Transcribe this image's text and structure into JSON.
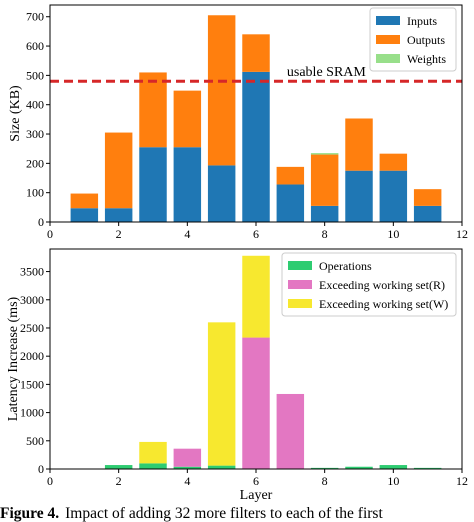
{
  "chart_data": [
    {
      "type": "bar",
      "stacked": true,
      "x": [
        1,
        2,
        3,
        4,
        5,
        6,
        7,
        8,
        9,
        10,
        11
      ],
      "series": [
        {
          "name": "Inputs",
          "color": "#1f77b4",
          "values": [
            47,
            47,
            255,
            255,
            193,
            512,
            128,
            55,
            175,
            175,
            55
          ]
        },
        {
          "name": "Outputs",
          "color": "#ff7f0e",
          "values": [
            50,
            258,
            255,
            193,
            512,
            128,
            60,
            175,
            178,
            58,
            57
          ]
        },
        {
          "name": "Weights",
          "color": "#98df8a",
          "values": [
            0,
            0,
            0,
            0,
            0,
            0,
            0,
            5,
            0,
            0,
            0
          ]
        }
      ],
      "xlim": [
        0,
        12
      ],
      "ylim": [
        0,
        740
      ],
      "xticks": [
        0,
        2,
        4,
        6,
        8,
        10,
        12
      ],
      "yticks": [
        0,
        100,
        200,
        300,
        400,
        500,
        600,
        700
      ],
      "ylabel": "Size (KB)",
      "xlabel": "",
      "legend": "top-right",
      "threshold": {
        "value": 480,
        "label": "usable SRAM",
        "color": "#d62728",
        "style": "dashed"
      }
    },
    {
      "type": "bar",
      "stacked": true,
      "x": [
        1,
        2,
        3,
        4,
        5,
        6,
        7,
        8,
        9,
        10,
        11
      ],
      "series": [
        {
          "name": "Operations",
          "color": "#2ecc71",
          "values": [
            0,
            70,
            100,
            40,
            60,
            0,
            0,
            20,
            40,
            70,
            20
          ]
        },
        {
          "name": "Exceeding working set(R)",
          "color": "#e377c2",
          "values": [
            0,
            0,
            0,
            320,
            0,
            2330,
            1330,
            0,
            0,
            0,
            0
          ]
        },
        {
          "name": "Exceeding working set(W)",
          "color": "#f7e82f",
          "values": [
            0,
            0,
            380,
            0,
            2540,
            1450,
            0,
            0,
            0,
            0,
            0
          ]
        }
      ],
      "xlim": [
        0,
        12
      ],
      "ylim": [
        0,
        3900
      ],
      "xticks": [
        0,
        2,
        4,
        6,
        8,
        10,
        12
      ],
      "yticks": [
        0,
        500,
        1000,
        1500,
        2000,
        2500,
        3000,
        3500
      ],
      "ylabel": "Latency Increase (ms)",
      "xlabel": "Layer",
      "legend": "top-right"
    }
  ],
  "caption": {
    "label": "Figure 4.",
    "text": "Impact of adding 32 more filters to each of the first"
  }
}
